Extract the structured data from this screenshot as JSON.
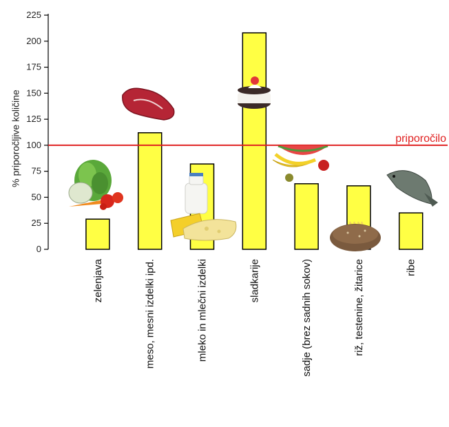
{
  "chart_data": {
    "type": "bar",
    "ylabel": "% priporočljive količine",
    "ylim": [
      0,
      225
    ],
    "yticks": [
      0,
      25,
      50,
      75,
      100,
      125,
      150,
      175,
      200,
      225
    ],
    "categories": [
      "zelenjava",
      "meso, mesni izdelki ipd.",
      "mleko in mlečni izdelki",
      "sladkarije",
      "sadje (brez sadnih sokov)",
      "riž, testenine, žitarice",
      "ribe"
    ],
    "values": [
      29,
      112,
      82,
      208,
      63,
      61,
      35
    ],
    "bar_color": "#ffff44",
    "bar_edge_color": "#000000",
    "reference_line": {
      "value": 100,
      "label": "priporočilo",
      "color": "#e02020"
    },
    "food_icons": [
      "lettuce-tomato-carrot-icon",
      "steak-icon",
      "milk-cheese-icon",
      "cake-icon",
      "fruit-icon",
      "bread-pasta-icon",
      "fish-icon"
    ]
  }
}
